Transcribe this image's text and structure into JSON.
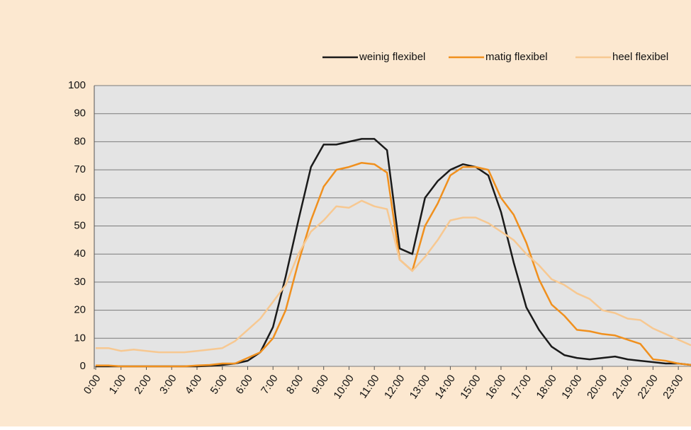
{
  "chart_data": {
    "type": "line",
    "categories": [
      "0:00",
      null,
      "1:00",
      null,
      "2:00",
      null,
      "3:00",
      null,
      "4:00",
      null,
      "5:00",
      null,
      "6:00",
      null,
      "7:00",
      null,
      "8:00",
      null,
      "9:00",
      null,
      "10:00",
      null,
      "11:00",
      null,
      "12:00",
      null,
      "13:00",
      null,
      "14:00",
      null,
      "15:00",
      null,
      "16:00",
      null,
      "17:00",
      null,
      "18:00",
      null,
      "19:00",
      null,
      "20:00",
      null,
      "21:00",
      null,
      "22:00",
      null,
      "23:00",
      null
    ],
    "series": [
      {
        "name": "weinig flexibel",
        "color": "#1a1a1a",
        "values": [
          0,
          0,
          0,
          0,
          0,
          0,
          0,
          0,
          0,
          0.2,
          0.5,
          1,
          2,
          5,
          14,
          32,
          52,
          71,
          79,
          79,
          80,
          81,
          81,
          77,
          42,
          40,
          60,
          66,
          70,
          72,
          71,
          68,
          55,
          37,
          21,
          13,
          7,
          4,
          3,
          2.5,
          3,
          3.5,
          2.5,
          2,
          1.5,
          1,
          1,
          0.5
        ]
      },
      {
        "name": "matig flexibel",
        "color": "#f0901e",
        "values": [
          0.3,
          0.3,
          0,
          0,
          0,
          0,
          0,
          0,
          0.3,
          0.5,
          1,
          1,
          3,
          5,
          10,
          20,
          37,
          52,
          64,
          70,
          71,
          72.5,
          72,
          69,
          38,
          34,
          50,
          58,
          68,
          71,
          71,
          70,
          60,
          54,
          44,
          31,
          22,
          18,
          13,
          12.5,
          11.5,
          11,
          9.5,
          8,
          2.5,
          2,
          1,
          0.5
        ]
      },
      {
        "name": "heel flexibel",
        "color": "#f7c891",
        "values": [
          6.5,
          6.5,
          5.5,
          6,
          5.5,
          5,
          5,
          5,
          5.5,
          6,
          6.5,
          9,
          13,
          17,
          23,
          29,
          40,
          48,
          52,
          57,
          56.5,
          59,
          57,
          56,
          38,
          34,
          39,
          45,
          52,
          53,
          53,
          51,
          48,
          45,
          40,
          36,
          31,
          29,
          26,
          24,
          20,
          19,
          17,
          16.5,
          13.5,
          11.5,
          9.5,
          7.5
        ]
      }
    ],
    "ylim": [
      0,
      100
    ],
    "yticks": [
      0,
      10,
      20,
      30,
      40,
      50,
      60,
      70,
      80,
      90,
      100
    ],
    "grid": true
  }
}
